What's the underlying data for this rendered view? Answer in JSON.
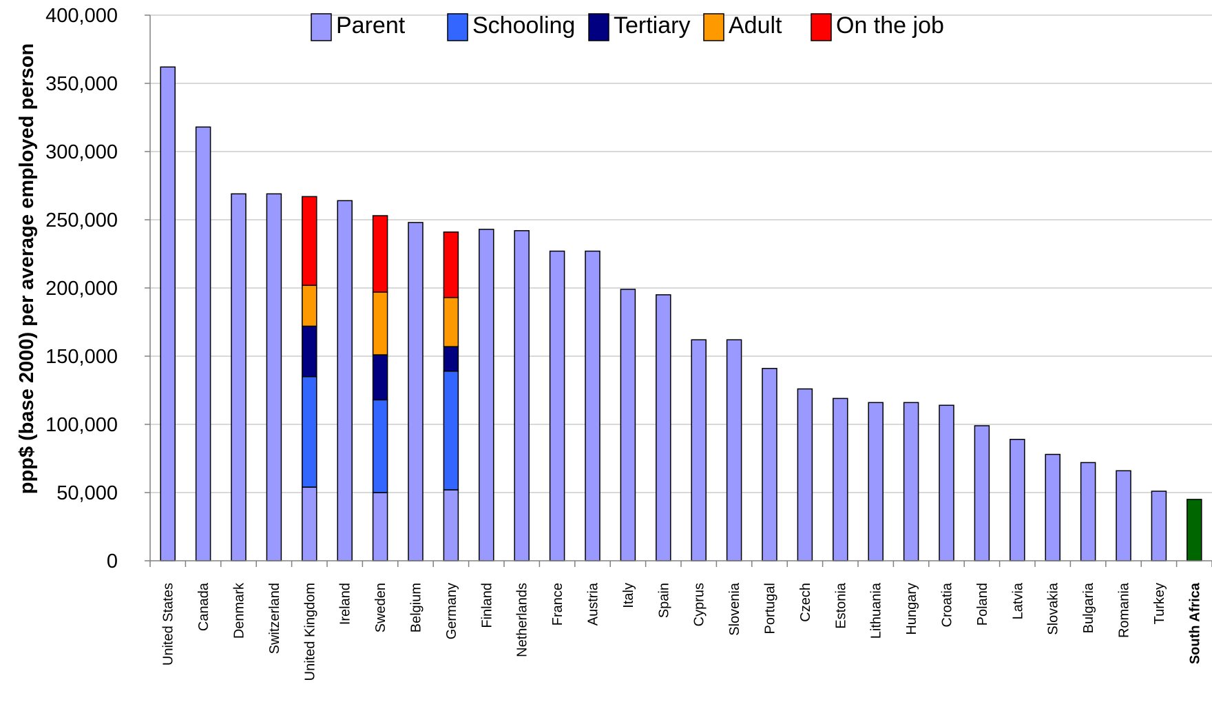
{
  "chart_data": {
    "type": "bar",
    "stacked": true,
    "ylabel": "ppp$ (base 2000) per average employed person",
    "ylim": [
      0,
      400000
    ],
    "y_ticks": [
      0,
      50000,
      100000,
      150000,
      200000,
      250000,
      300000,
      350000,
      400000
    ],
    "y_tick_labels": [
      "0",
      "50,000",
      "100,000",
      "150,000",
      "200,000",
      "250,000",
      "300,000",
      "350,000",
      "400,000"
    ],
    "grid": true,
    "legend_position": "top",
    "categories": [
      "United States",
      "Canada",
      "Denmark",
      "Switzerland",
      "United Kingdom",
      "Ireland",
      "Sweden",
      "Belgium",
      "Germany",
      "Finland",
      "Netherlands",
      "France",
      "Austria",
      "Italy",
      "Spain",
      "Cyprus",
      "Slovenia",
      "Portugal",
      "Czech",
      "Estonia",
      "Lithuania",
      "Hungary",
      "Croatia",
      "Poland",
      "Latvia",
      "Slovakia",
      "Bulgaria",
      "Romania",
      "Turkey",
      "South Africa"
    ],
    "highlighted_category": "South Africa",
    "totals": [
      362000,
      318000,
      269000,
      269000,
      267000,
      264000,
      253000,
      248000,
      241000,
      243000,
      242000,
      227000,
      227000,
      199000,
      195000,
      162000,
      162000,
      141000,
      126000,
      119000,
      116000,
      116000,
      114000,
      99000,
      89000,
      78000,
      72000,
      66000,
      51000,
      45000
    ],
    "series": [
      {
        "name": "Parent",
        "color": "#9999ff",
        "values": [
          362000,
          318000,
          269000,
          269000,
          54000,
          264000,
          50000,
          248000,
          52000,
          243000,
          242000,
          227000,
          227000,
          199000,
          195000,
          162000,
          162000,
          141000,
          126000,
          119000,
          116000,
          116000,
          114000,
          99000,
          89000,
          78000,
          72000,
          66000,
          51000,
          45000
        ]
      },
      {
        "name": "Schooling",
        "color": "#3366ff",
        "values": [
          0,
          0,
          0,
          0,
          81000,
          0,
          68000,
          0,
          87000,
          0,
          0,
          0,
          0,
          0,
          0,
          0,
          0,
          0,
          0,
          0,
          0,
          0,
          0,
          0,
          0,
          0,
          0,
          0,
          0,
          0
        ]
      },
      {
        "name": "Tertiary",
        "color": "#000080",
        "values": [
          0,
          0,
          0,
          0,
          37000,
          0,
          33000,
          0,
          18000,
          0,
          0,
          0,
          0,
          0,
          0,
          0,
          0,
          0,
          0,
          0,
          0,
          0,
          0,
          0,
          0,
          0,
          0,
          0,
          0,
          0
        ]
      },
      {
        "name": "Adult",
        "color": "#ff9900",
        "values": [
          0,
          0,
          0,
          0,
          30000,
          0,
          46000,
          0,
          36000,
          0,
          0,
          0,
          0,
          0,
          0,
          0,
          0,
          0,
          0,
          0,
          0,
          0,
          0,
          0,
          0,
          0,
          0,
          0,
          0,
          0
        ]
      },
      {
        "name": "On the job",
        "color": "#ff0000",
        "values": [
          0,
          0,
          0,
          0,
          65000,
          0,
          56000,
          0,
          48000,
          0,
          0,
          0,
          0,
          0,
          0,
          0,
          0,
          0,
          0,
          0,
          0,
          0,
          0,
          0,
          0,
          0,
          0,
          0,
          0,
          0
        ]
      }
    ],
    "highlight_color": "#006600"
  }
}
